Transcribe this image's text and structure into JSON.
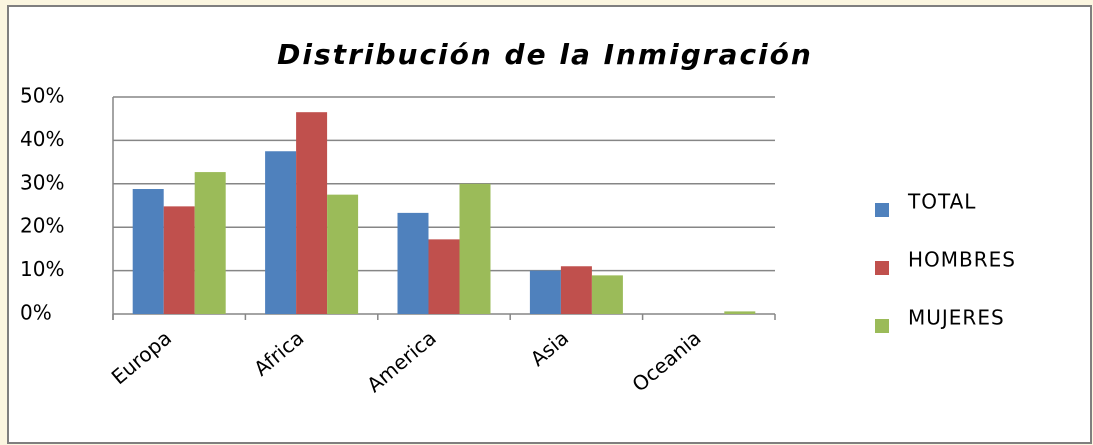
{
  "chart_data": {
    "type": "bar",
    "title": "Distribución de la Inmigración",
    "categories": [
      "Europa",
      "Africa",
      "America",
      "Asia",
      "Oceania"
    ],
    "series": [
      {
        "name": "TOTAL",
        "color": "#4f81bd",
        "values": [
          28.8,
          37.5,
          23.3,
          10,
          0
        ]
      },
      {
        "name": "HOMBRES",
        "color": "#c0504d",
        "values": [
          24.8,
          46.5,
          17.2,
          11,
          0
        ]
      },
      {
        "name": "MUJERES",
        "color": "#9bbb59",
        "values": [
          32.7,
          27.5,
          30,
          8.9,
          0.6
        ]
      }
    ],
    "ylim": [
      0,
      50
    ],
    "yticks": [
      {
        "value": 0,
        "label": "0%"
      },
      {
        "value": 10,
        "label": "10%"
      },
      {
        "value": 20,
        "label": "20%"
      },
      {
        "value": 30,
        "label": "30%"
      },
      {
        "value": 40,
        "label": "40%"
      },
      {
        "value": 50,
        "label": "50%"
      }
    ],
    "grid": true,
    "legend": "right"
  }
}
